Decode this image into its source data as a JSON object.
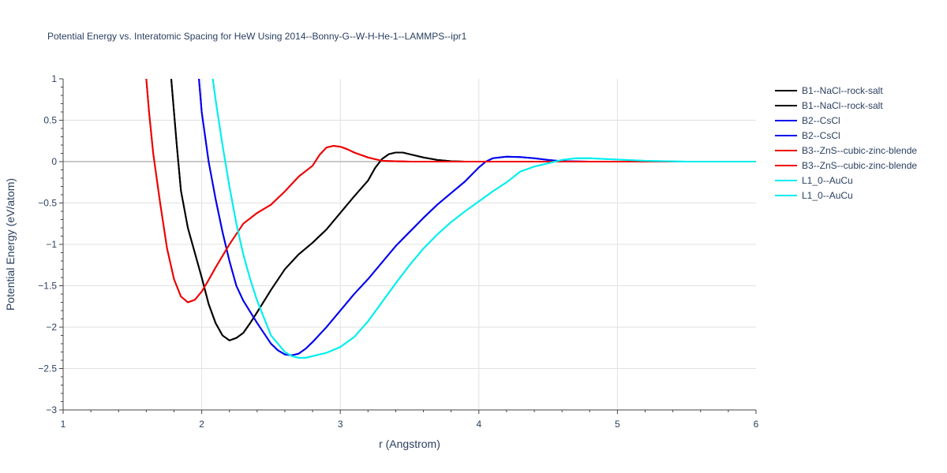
{
  "chart_data": {
    "type": "line",
    "title": "Potential Energy vs. Interatomic Spacing for HeW Using 2014--Bonny-G--W-H-He-1--LAMMPS--ipr1",
    "xlabel": "r (Angstrom)",
    "ylabel": "Potential Energy (eV/atom)",
    "xlim": [
      1,
      6
    ],
    "ylim": [
      -3,
      1
    ],
    "xticks": [
      "1",
      "2",
      "3",
      "4",
      "5",
      "6"
    ],
    "yticks": [
      "1",
      "0.5",
      "0",
      "−0.5",
      "−1",
      "−1.5",
      "−2",
      "−2.5",
      "−3"
    ],
    "grid": true,
    "legend_position": "right",
    "series": [
      {
        "name": "B1--NaCl--rock-salt",
        "color": "#000000",
        "x": [
          1.78,
          1.8,
          1.82,
          1.85,
          1.9,
          1.95,
          2.0,
          2.05,
          2.1,
          2.15,
          2.2,
          2.25,
          2.3,
          2.35,
          2.4,
          2.5,
          2.6,
          2.7,
          2.8,
          2.9,
          3.0,
          3.1,
          3.2,
          3.25,
          3.3,
          3.35,
          3.4,
          3.45,
          3.5,
          3.6,
          3.7,
          3.8,
          3.9,
          4.0,
          4.2,
          4.5,
          5.0,
          6.0
        ],
        "y": [
          1.0,
          0.6,
          0.2,
          -0.35,
          -0.8,
          -1.1,
          -1.4,
          -1.72,
          -1.95,
          -2.1,
          -2.16,
          -2.13,
          -2.07,
          -1.95,
          -1.82,
          -1.55,
          -1.3,
          -1.12,
          -0.98,
          -0.82,
          -0.62,
          -0.42,
          -0.23,
          -0.08,
          0.03,
          0.09,
          0.11,
          0.11,
          0.09,
          0.05,
          0.02,
          0.005,
          0.0,
          0.0,
          0.0,
          0.0,
          0.0,
          0.0
        ]
      },
      {
        "name": "B1--NaCl--rock-salt",
        "color": "#000000",
        "x": [
          1.78,
          1.8,
          1.82,
          1.85,
          1.9,
          1.95,
          2.0,
          2.05,
          2.1,
          2.15,
          2.2,
          2.25,
          2.3,
          2.35,
          2.4,
          2.5,
          2.6,
          2.7,
          2.8,
          2.9,
          3.0,
          3.1,
          3.2,
          3.25,
          3.3,
          3.35,
          3.4,
          3.45,
          3.5,
          3.6,
          3.7,
          3.8,
          3.9,
          4.0,
          4.2,
          4.5,
          5.0,
          6.0
        ],
        "y": [
          1.0,
          0.6,
          0.2,
          -0.35,
          -0.8,
          -1.1,
          -1.4,
          -1.72,
          -1.95,
          -2.1,
          -2.16,
          -2.13,
          -2.07,
          -1.95,
          -1.82,
          -1.55,
          -1.3,
          -1.12,
          -0.98,
          -0.82,
          -0.62,
          -0.42,
          -0.23,
          -0.08,
          0.03,
          0.09,
          0.11,
          0.11,
          0.09,
          0.05,
          0.02,
          0.005,
          0.0,
          0.0,
          0.0,
          0.0,
          0.0,
          0.0
        ]
      },
      {
        "name": "B2--CsCl",
        "color": "#0000ee",
        "x": [
          1.98,
          2.0,
          2.05,
          2.1,
          2.15,
          2.2,
          2.25,
          2.3,
          2.4,
          2.5,
          2.55,
          2.6,
          2.65,
          2.7,
          2.75,
          2.8,
          2.9,
          3.0,
          3.1,
          3.2,
          3.3,
          3.4,
          3.5,
          3.6,
          3.7,
          3.8,
          3.9,
          4.0,
          4.05,
          4.1,
          4.2,
          4.3,
          4.4,
          4.5,
          4.6,
          4.8,
          5.0,
          6.0
        ],
        "y": [
          1.0,
          0.6,
          0.0,
          -0.45,
          -0.85,
          -1.2,
          -1.5,
          -1.68,
          -1.95,
          -2.2,
          -2.28,
          -2.33,
          -2.34,
          -2.32,
          -2.26,
          -2.18,
          -2.0,
          -1.8,
          -1.6,
          -1.42,
          -1.22,
          -1.02,
          -0.85,
          -0.68,
          -0.52,
          -0.38,
          -0.24,
          -0.07,
          0.0,
          0.04,
          0.06,
          0.055,
          0.04,
          0.02,
          0.005,
          0.0,
          0.0,
          0.0
        ]
      },
      {
        "name": "B2--CsCl",
        "color": "#0000ee",
        "x": [
          1.98,
          2.0,
          2.05,
          2.1,
          2.15,
          2.2,
          2.25,
          2.3,
          2.4,
          2.5,
          2.55,
          2.6,
          2.65,
          2.7,
          2.75,
          2.8,
          2.9,
          3.0,
          3.1,
          3.2,
          3.3,
          3.4,
          3.5,
          3.6,
          3.7,
          3.8,
          3.9,
          4.0,
          4.05,
          4.1,
          4.2,
          4.3,
          4.4,
          4.5,
          4.6,
          4.8,
          5.0,
          6.0
        ],
        "y": [
          1.0,
          0.6,
          0.0,
          -0.45,
          -0.85,
          -1.2,
          -1.5,
          -1.68,
          -1.95,
          -2.2,
          -2.28,
          -2.33,
          -2.34,
          -2.32,
          -2.26,
          -2.18,
          -2.0,
          -1.8,
          -1.6,
          -1.42,
          -1.22,
          -1.02,
          -0.85,
          -0.68,
          -0.52,
          -0.38,
          -0.24,
          -0.07,
          0.0,
          0.04,
          0.06,
          0.055,
          0.04,
          0.02,
          0.005,
          0.0,
          0.0,
          0.0
        ]
      },
      {
        "name": "B3--ZnS--cubic-zinc-blende",
        "color": "#ee0000",
        "x": [
          1.6,
          1.62,
          1.65,
          1.7,
          1.75,
          1.8,
          1.85,
          1.9,
          1.95,
          2.0,
          2.05,
          2.1,
          2.2,
          2.3,
          2.4,
          2.5,
          2.6,
          2.7,
          2.8,
          2.85,
          2.9,
          2.95,
          3.0,
          3.05,
          3.1,
          3.2,
          3.3,
          3.5,
          4.0,
          5.0,
          6.0
        ],
        "y": [
          1.0,
          0.6,
          0.1,
          -0.5,
          -1.05,
          -1.42,
          -1.63,
          -1.7,
          -1.67,
          -1.57,
          -1.43,
          -1.28,
          -1.0,
          -0.75,
          -0.62,
          -0.52,
          -0.36,
          -0.18,
          -0.05,
          0.08,
          0.17,
          0.19,
          0.18,
          0.15,
          0.11,
          0.05,
          0.01,
          0.0,
          0.0,
          0.0,
          0.0
        ]
      },
      {
        "name": "B3--ZnS--cubic-zinc-blende",
        "color": "#ee0000",
        "x": [
          1.6,
          1.62,
          1.65,
          1.7,
          1.75,
          1.8,
          1.85,
          1.9,
          1.95,
          2.0,
          2.05,
          2.1,
          2.2,
          2.3,
          2.4,
          2.5,
          2.6,
          2.7,
          2.8,
          2.85,
          2.9,
          2.95,
          3.0,
          3.05,
          3.1,
          3.2,
          3.3,
          3.5,
          4.0,
          5.0,
          6.0
        ],
        "y": [
          1.0,
          0.6,
          0.1,
          -0.5,
          -1.05,
          -1.42,
          -1.63,
          -1.7,
          -1.67,
          -1.57,
          -1.43,
          -1.28,
          -1.0,
          -0.75,
          -0.62,
          -0.52,
          -0.36,
          -0.18,
          -0.05,
          0.08,
          0.17,
          0.19,
          0.18,
          0.15,
          0.11,
          0.05,
          0.01,
          0.0,
          0.0,
          0.0,
          0.0
        ]
      },
      {
        "name": "L1_0--AuCu",
        "color": "#00eeee",
        "x": [
          2.08,
          2.1,
          2.15,
          2.2,
          2.25,
          2.3,
          2.35,
          2.4,
          2.5,
          2.6,
          2.65,
          2.7,
          2.75,
          2.8,
          2.9,
          3.0,
          3.1,
          3.2,
          3.3,
          3.4,
          3.5,
          3.6,
          3.7,
          3.8,
          3.9,
          4.0,
          4.1,
          4.2,
          4.3,
          4.4,
          4.5,
          4.6,
          4.7,
          4.8,
          5.0,
          5.2,
          5.5,
          6.0
        ],
        "y": [
          1.0,
          0.75,
          0.2,
          -0.3,
          -0.75,
          -1.12,
          -1.42,
          -1.68,
          -2.1,
          -2.3,
          -2.35,
          -2.37,
          -2.37,
          -2.35,
          -2.31,
          -2.24,
          -2.12,
          -1.93,
          -1.7,
          -1.47,
          -1.25,
          -1.05,
          -0.88,
          -0.73,
          -0.6,
          -0.48,
          -0.36,
          -0.25,
          -0.12,
          -0.06,
          -0.02,
          0.02,
          0.04,
          0.04,
          0.025,
          0.01,
          0.0,
          0.0
        ]
      },
      {
        "name": "L1_0--AuCu",
        "color": "#00eeee",
        "x": [
          2.08,
          2.1,
          2.15,
          2.2,
          2.25,
          2.3,
          2.35,
          2.4,
          2.5,
          2.6,
          2.65,
          2.7,
          2.75,
          2.8,
          2.9,
          3.0,
          3.1,
          3.2,
          3.3,
          3.4,
          3.5,
          3.6,
          3.7,
          3.8,
          3.9,
          4.0,
          4.1,
          4.2,
          4.3,
          4.4,
          4.5,
          4.6,
          4.7,
          4.8,
          5.0,
          5.2,
          5.5,
          6.0
        ],
        "y": [
          1.0,
          0.75,
          0.2,
          -0.3,
          -0.75,
          -1.12,
          -1.42,
          -1.68,
          -2.1,
          -2.3,
          -2.35,
          -2.37,
          -2.37,
          -2.35,
          -2.31,
          -2.24,
          -2.12,
          -1.93,
          -1.7,
          -1.47,
          -1.25,
          -1.05,
          -0.88,
          -0.73,
          -0.6,
          -0.48,
          -0.36,
          -0.25,
          -0.12,
          -0.06,
          -0.02,
          0.02,
          0.04,
          0.04,
          0.025,
          0.01,
          0.0,
          0.0
        ]
      }
    ]
  }
}
